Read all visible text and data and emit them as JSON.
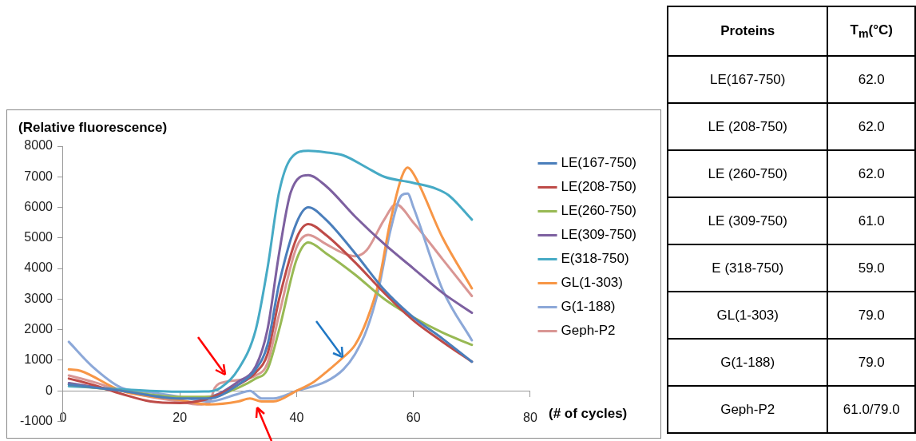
{
  "chart_data": [
    {
      "type": "line",
      "ylabel": "(Relative fluorescence)",
      "xlabel": "(# of cycles)",
      "xlim": [
        0,
        80
      ],
      "xticks": [
        0,
        20,
        40,
        60,
        80
      ],
      "ylim": [
        -1000,
        8000
      ],
      "yticks": [
        -1000,
        0,
        1000,
        2000,
        3000,
        4000,
        5000,
        6000,
        7000,
        8000
      ],
      "grid": false,
      "legend": "right",
      "marker": "none",
      "line_style": "solid",
      "series": [
        {
          "name": "LE(167-750)",
          "color": "#4a7ebb",
          "x": [
            1,
            10,
            20,
            25,
            30,
            33,
            35,
            37,
            40,
            42,
            45,
            50,
            55,
            60,
            65,
            70
          ],
          "values": [
            200,
            0,
            -250,
            -250,
            200,
            700,
            1500,
            3500,
            5500,
            6000,
            5600,
            4500,
            3300,
            2400,
            1700,
            950
          ]
        },
        {
          "name": "LE(208-750)",
          "color": "#be4b48",
          "x": [
            1,
            5,
            10,
            15,
            20,
            25,
            30,
            33,
            35,
            37,
            40,
            42,
            45,
            50,
            55,
            60,
            65,
            70
          ],
          "values": [
            400,
            200,
            -100,
            -350,
            -400,
            -250,
            200,
            600,
            1200,
            3000,
            5000,
            5450,
            5100,
            4200,
            3200,
            2300,
            1600,
            950
          ]
        },
        {
          "name": "LE(260-750)",
          "color": "#98b954",
          "x": [
            1,
            10,
            20,
            25,
            30,
            33,
            35,
            37,
            40,
            42,
            45,
            50,
            55,
            60,
            65,
            70
          ],
          "values": [
            200,
            0,
            -200,
            -200,
            100,
            400,
            700,
            2000,
            4300,
            4850,
            4500,
            3800,
            3000,
            2400,
            1900,
            1500
          ]
        },
        {
          "name": "LE(309-750)",
          "color": "#7d60a0",
          "x": [
            1,
            10,
            20,
            25,
            30,
            33,
            35,
            37,
            39,
            42,
            45,
            50,
            55,
            60,
            65,
            70
          ],
          "values": [
            250,
            0,
            -250,
            -200,
            300,
            800,
            2000,
            4500,
            6500,
            7050,
            6700,
            5700,
            4800,
            4000,
            3200,
            2550
          ]
        },
        {
          "name": "E(318-750)",
          "color": "#46aac5",
          "x": [
            1,
            10,
            20,
            25,
            27,
            30,
            33,
            35,
            37,
            39,
            42,
            45,
            48,
            52,
            55,
            60,
            64,
            66,
            70
          ],
          "values": [
            150,
            50,
            -30,
            -20,
            100,
            700,
            2000,
            4000,
            6500,
            7600,
            7850,
            7800,
            7700,
            7300,
            7000,
            6800,
            6600,
            6400,
            5600
          ]
        },
        {
          "name": "GL(1-303)",
          "color": "#f79646",
          "x": [
            1,
            3,
            10,
            20,
            25,
            30,
            32,
            34,
            36,
            40,
            43,
            45,
            48,
            50,
            52,
            54,
            56,
            58,
            59,
            60,
            65,
            70
          ],
          "values": [
            700,
            650,
            0,
            -300,
            -450,
            -350,
            -250,
            -350,
            -350,
            0,
            300,
            600,
            1100,
            1500,
            2300,
            3500,
            5500,
            7000,
            7300,
            7100,
            5000,
            3350
          ]
        },
        {
          "name": "G(1-188)",
          "color": "#8ca8d8",
          "x": [
            1,
            5,
            10,
            15,
            20,
            25,
            30,
            32,
            34,
            36,
            40,
            45,
            48,
            50,
            52,
            54,
            56,
            58,
            59,
            60,
            65,
            70
          ],
          "values": [
            1600,
            800,
            100,
            -50,
            -200,
            -350,
            -100,
            0,
            -250,
            -250,
            0,
            300,
            700,
            1200,
            2000,
            3300,
            5200,
            6400,
            6450,
            6000,
            3300,
            1650
          ]
        },
        {
          "name": "Geph-P2",
          "color": "#d99694",
          "x": [
            1,
            5,
            10,
            15,
            20,
            23,
            25,
            26,
            28,
            30,
            33,
            35,
            37,
            40,
            42,
            45,
            48,
            50,
            52,
            55,
            57,
            60,
            65,
            70
          ],
          "values": [
            500,
            300,
            0,
            -200,
            -350,
            -450,
            -400,
            100,
            300,
            350,
            500,
            900,
            2500,
            4700,
            5100,
            4800,
            4500,
            4400,
            4600,
            5600,
            6100,
            5500,
            4300,
            3100
          ]
        }
      ]
    },
    {
      "type": "other",
      "annotations": [
        "Proteins",
        "T$_{m}$(°C)",
        "LE(167-750)",
        "62.0",
        "LE (208-750)",
        "62.0",
        "LE (260-750)",
        "62.0",
        "LE (309-750)",
        "61.0",
        "E (318-750)",
        "59.0",
        "GL(1-303)",
        "79.0",
        "G(1-188)",
        "79.0",
        "Geph-P2",
        "61.0/79.0"
      ]
    }
  ]
}
